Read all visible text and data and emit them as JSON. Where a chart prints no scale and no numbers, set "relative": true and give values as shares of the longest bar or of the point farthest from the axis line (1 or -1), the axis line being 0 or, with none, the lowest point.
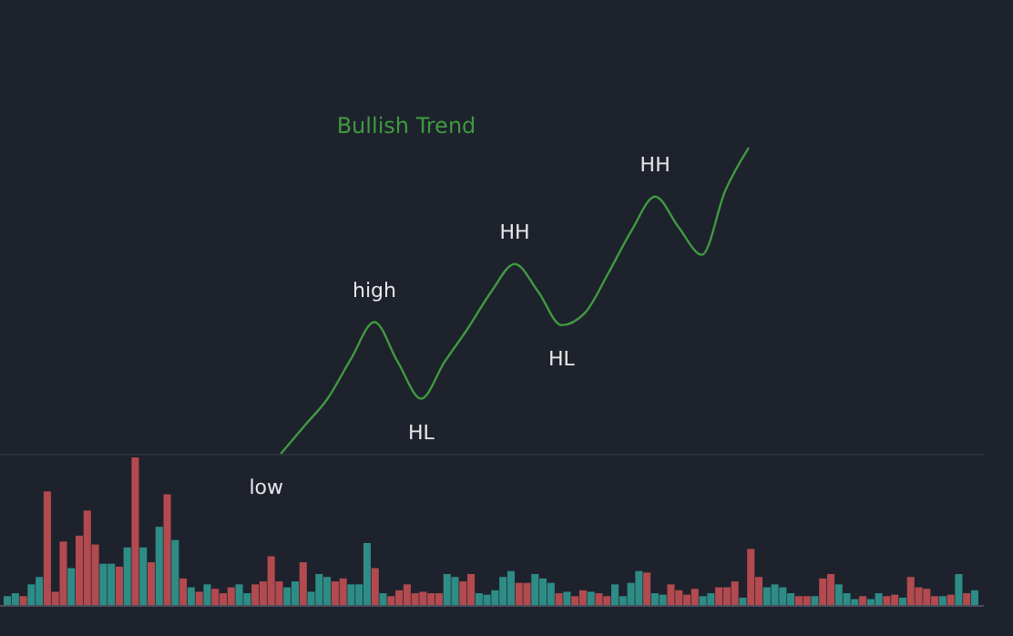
{
  "chart_data": [
    {
      "type": "line",
      "title": "Bullish Trend",
      "relative": true,
      "color": "#3f9a3f",
      "categories": [
        null,
        null,
        null,
        null,
        null,
        null,
        null,
        null,
        null,
        null,
        null,
        null,
        null,
        null,
        null,
        null,
        null,
        null,
        null,
        null,
        null,
        null,
        null,
        null,
        null,
        null,
        null,
        null,
        null,
        null,
        null,
        null,
        null,
        null,
        null,
        null,
        null,
        null,
        null
      ],
      "values": [
        null,
        null,
        null,
        null,
        null,
        null,
        null,
        null,
        null,
        null,
        null,
        null,
        0,
        0.09,
        0.18,
        0.31,
        0.43,
        0.3,
        0.18,
        0.3,
        0.41,
        0.53,
        0.62,
        0.53,
        0.42,
        0.46,
        0.59,
        0.73,
        0.84,
        0.74,
        0.65,
        0.86,
        1,
        null,
        null,
        null,
        null,
        null,
        null
      ],
      "annotations": [
        "low",
        "high",
        "HL",
        "HH",
        "HL",
        "HH"
      ]
    },
    {
      "type": "bar",
      "relative": true,
      "categories": [
        null,
        null,
        null,
        null,
        null,
        null,
        null,
        null,
        null,
        null,
        null,
        null,
        null,
        null,
        null,
        null,
        null,
        null,
        null,
        null,
        null,
        null,
        null,
        null,
        null,
        null,
        null,
        null,
        null,
        null,
        null,
        null,
        null,
        null,
        null,
        null,
        null,
        null,
        null,
        null,
        null,
        null,
        null,
        null,
        null,
        null,
        null,
        null,
        null,
        null,
        null,
        null,
        null,
        null,
        null,
        null,
        null,
        null,
        null,
        null,
        null,
        null,
        null,
        null,
        null,
        null,
        null,
        null,
        null,
        null,
        null,
        null,
        null,
        null,
        null,
        null,
        null,
        null,
        null,
        null,
        null,
        null,
        null,
        null,
        null,
        null,
        null,
        null,
        null,
        null,
        null,
        null,
        null,
        null,
        null,
        null,
        null,
        null,
        null,
        null,
        null,
        null,
        null,
        null,
        null,
        null,
        null,
        null,
        null,
        null,
        null,
        null,
        null,
        null,
        null,
        null,
        null,
        null,
        null,
        null,
        null,
        null
      ],
      "values": [
        0.06,
        0.08,
        0.06,
        0.14,
        0.19,
        0.77,
        0.09,
        0.43,
        0.25,
        0.47,
        0.64,
        0.41,
        0.28,
        0.28,
        0.26,
        0.39,
        1,
        0.39,
        0.29,
        0.53,
        0.75,
        0.44,
        0.18,
        0.12,
        0.09,
        0.14,
        0.11,
        0.08,
        0.12,
        0.14,
        0.08,
        0.14,
        0.16,
        0.33,
        0.16,
        0.12,
        0.16,
        0.29,
        0.09,
        0.21,
        0.19,
        0.16,
        0.18,
        0.14,
        0.14,
        0.42,
        0.25,
        0.08,
        0.06,
        0.1,
        0.14,
        0.08,
        0.09,
        0.08,
        0.08,
        0.21,
        0.19,
        0.16,
        0.21,
        0.08,
        0.07,
        0.1,
        0.19,
        0.23,
        0.15,
        0.15,
        0.21,
        0.18,
        0.15,
        0.08,
        0.09,
        0.06,
        0.1,
        0.09,
        0.08,
        0.06,
        0.14,
        0.06,
        0.15,
        0.23,
        0.22,
        0.08,
        0.07,
        0.14,
        0.1,
        0.07,
        0.11,
        0.06,
        0.08,
        0.12,
        0.12,
        0.16,
        0.05,
        0.38,
        0.19,
        0.12,
        0.14,
        0.12,
        0.08,
        0.06,
        0.06,
        0.06,
        0.18,
        0.21,
        0.14,
        0.08,
        0.04,
        0.06,
        0.04,
        0.08,
        0.06,
        0.07,
        0.05,
        0.19,
        0.12,
        0.11,
        0.06,
        0.06,
        0.07,
        0.21,
        0.08,
        0.1
      ],
      "colors": [
        "#2e8c86",
        "#2e8c86",
        "#b24a4f",
        "#2e8c86",
        "#2e8c86",
        "#b24a4f",
        "#b24a4f",
        "#b24a4f",
        "#2e8c86",
        "#b24a4f",
        "#b24a4f",
        "#b24a4f",
        "#2e8c86",
        "#2e8c86",
        "#b24a4f",
        "#2e8c86",
        "#b24a4f",
        "#2e8c86",
        "#b24a4f",
        "#2e8c86",
        "#b24a4f",
        "#2e8c86",
        "#b24a4f",
        "#2e8c86",
        "#b24a4f",
        "#2e8c86",
        "#b24a4f",
        "#b24a4f",
        "#b24a4f",
        "#2e8c86",
        "#2e8c86",
        "#b24a4f",
        "#b24a4f",
        "#b24a4f",
        "#b24a4f",
        "#2e8c86",
        "#2e8c86",
        "#b24a4f",
        "#2e8c86",
        "#2e8c86",
        "#2e8c86",
        "#b24a4f",
        "#b24a4f",
        "#2e8c86",
        "#2e8c86",
        "#2e8c86",
        "#b24a4f",
        "#2e8c86",
        "#b24a4f",
        "#b24a4f",
        "#b24a4f",
        "#b24a4f",
        "#b24a4f",
        "#b24a4f",
        "#b24a4f",
        "#2e8c86",
        "#2e8c86",
        "#b24a4f",
        "#b24a4f",
        "#2e8c86",
        "#2e8c86",
        "#2e8c86",
        "#2e8c86",
        "#2e8c86",
        "#b24a4f",
        "#b24a4f",
        "#2e8c86",
        "#2e8c86",
        "#2e8c86",
        "#b24a4f",
        "#2e8c86",
        "#b24a4f",
        "#b24a4f",
        "#2e8c86",
        "#b24a4f",
        "#b24a4f",
        "#2e8c86",
        "#2e8c86",
        "#2e8c86",
        "#2e8c86",
        "#b24a4f",
        "#2e8c86",
        "#2e8c86",
        "#b24a4f",
        "#b24a4f",
        "#b24a4f",
        "#b24a4f",
        "#2e8c86",
        "#2e8c86",
        "#b24a4f",
        "#b24a4f",
        "#b24a4f",
        "#2e8c86",
        "#b24a4f",
        "#b24a4f",
        "#2e8c86",
        "#2e8c86",
        "#2e8c86",
        "#2e8c86",
        "#b24a4f",
        "#b24a4f",
        "#2e8c86",
        "#b24a4f",
        "#b24a4f",
        "#2e8c86",
        "#2e8c86",
        "#2e8c86",
        "#b24a4f",
        "#2e8c86",
        "#2e8c86",
        "#b24a4f",
        "#b24a4f",
        "#2e8c86",
        "#b24a4f",
        "#b24a4f",
        "#b24a4f",
        "#b24a4f",
        "#2e8c86",
        "#b24a4f",
        "#2e8c86",
        "#b24a4f",
        "#2e8c86"
      ]
    }
  ]
}
